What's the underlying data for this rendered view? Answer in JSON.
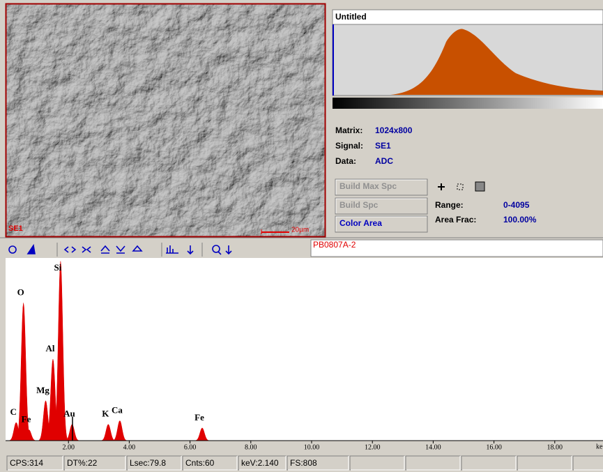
{
  "image_panel": {
    "signal_label": "SE1",
    "scale_label": "20µm"
  },
  "histogram_panel": {
    "title": "Untitled",
    "info": [
      {
        "label": "Matrix:",
        "value": "1024x800"
      },
      {
        "label": "Signal:",
        "value": "SE1"
      },
      {
        "label": "Data:",
        "value": "ADC"
      }
    ],
    "buttons": [
      "Build Max Spc",
      "Build Spc",
      "Color Area"
    ],
    "range": {
      "label": "Range:",
      "value": "0-4095"
    },
    "area_frac": {
      "label": "Area Frac:",
      "value": "100.00%"
    }
  },
  "toolbar": {
    "spectrum_name": "PB0807A-2"
  },
  "spectrum": {
    "type": "line",
    "xlim": [
      0,
      19.6
    ],
    "ylim": [
      0,
      100
    ],
    "xticks": [
      {
        "value": 2,
        "label": "2.00"
      },
      {
        "value": 4,
        "label": "4.00"
      },
      {
        "value": 6,
        "label": "6.00"
      },
      {
        "value": 8,
        "label": "8.00"
      },
      {
        "value": 10,
        "label": "10.00"
      },
      {
        "value": 12,
        "label": "12.00"
      },
      {
        "value": 14,
        "label": "14.00"
      },
      {
        "value": 16,
        "label": "16.00"
      },
      {
        "value": 18,
        "label": "18.00"
      }
    ],
    "x_axis_label": "ke",
    "color": "#e00000",
    "peaks": [
      {
        "element": "C",
        "kev": 0.28,
        "height": 10
      },
      {
        "element": "O",
        "kev": 0.52,
        "height": 76
      },
      {
        "element": "Fe",
        "kev": 0.7,
        "height": 6
      },
      {
        "element": "Mg",
        "kev": 1.25,
        "height": 22
      },
      {
        "element": "Al",
        "kev": 1.49,
        "height": 45
      },
      {
        "element": "Si",
        "kev": 1.74,
        "height": 99
      },
      {
        "element": "Au",
        "kev": 2.12,
        "height": 9
      },
      {
        "element": "K",
        "kev": 3.31,
        "height": 9
      },
      {
        "element": "Ca",
        "kev": 3.69,
        "height": 11
      },
      {
        "element": "Fe",
        "kev": 6.4,
        "height": 7
      }
    ]
  },
  "status_bar": [
    "CPS:314",
    "DT%:22",
    "Lsec:79.8",
    "Cnts:60",
    "keV:2.140",
    "FS:808"
  ]
}
